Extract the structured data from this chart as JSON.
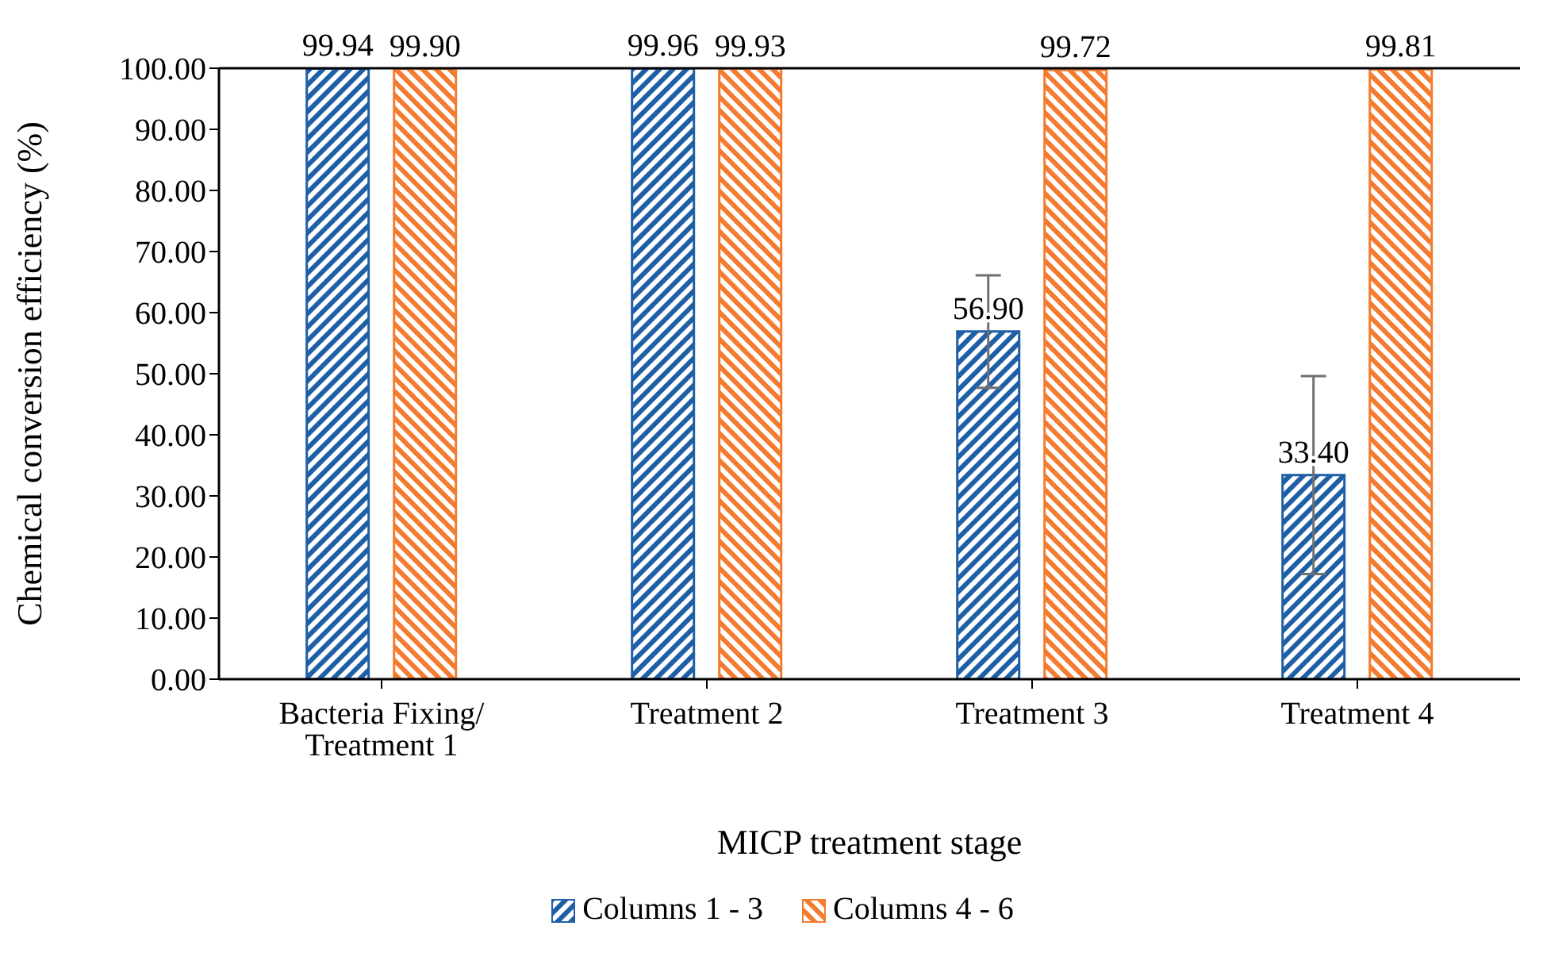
{
  "chart_data": {
    "type": "bar",
    "xlabel": "MICP treatment stage",
    "ylabel": "Chemical conversion efficiency (%)",
    "categories": [
      "Bacteria Fixing/ Treatment 1",
      "Treatment 2",
      "Treatment 3",
      "Treatment 4"
    ],
    "series": [
      {
        "name": "Columns 1 - 3",
        "color": "#1f5fa6",
        "values": [
          99.94,
          99.96,
          56.9,
          33.4
        ],
        "errors": [
          null,
          null,
          9.2,
          16.2
        ],
        "value_labels": [
          "99.94",
          "99.96",
          "56.90",
          "33.40"
        ]
      },
      {
        "name": "Columns 4 - 6",
        "color": "#f47c30",
        "values": [
          99.9,
          99.93,
          99.72,
          99.81
        ],
        "value_labels": [
          "99.90",
          "99.93",
          "99.72",
          "99.81"
        ]
      }
    ],
    "ylim": [
      0,
      100
    ],
    "yticks": [
      {
        "value": 0,
        "label": "0.00"
      },
      {
        "value": 10,
        "label": "10.00"
      },
      {
        "value": 20,
        "label": "20.00"
      },
      {
        "value": 30,
        "label": "30.00"
      },
      {
        "value": 40,
        "label": "40.00"
      },
      {
        "value": 50,
        "label": "50.00"
      },
      {
        "value": 60,
        "label": "60.00"
      },
      {
        "value": 70,
        "label": "70.00"
      },
      {
        "value": 80,
        "label": "80.00"
      },
      {
        "value": 90,
        "label": "90.00"
      },
      {
        "value": 100,
        "label": "100.00"
      }
    ],
    "legend": "bottom"
  }
}
